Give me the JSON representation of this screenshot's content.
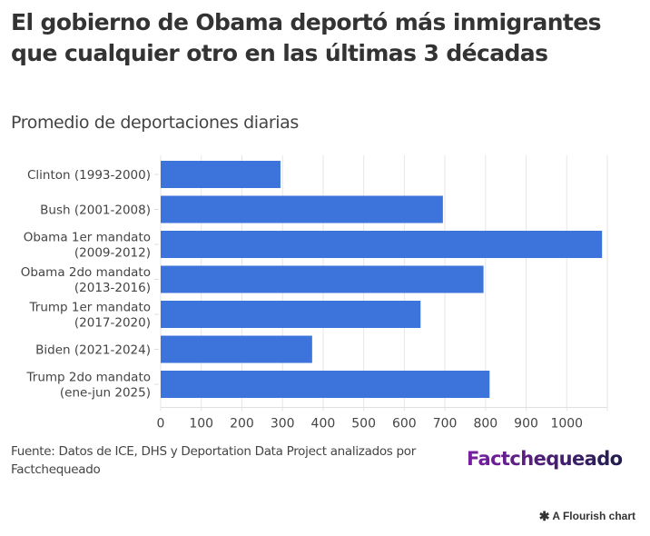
{
  "header": {
    "title": "El gobierno de Obama deportó más inmigrantes que cualquier otro en las últimas 3 décadas",
    "subtitle": "Promedio de deportaciones diarias"
  },
  "footer": {
    "source": "Fuente: Datos de ICE, DHS y Deportation Data Project analizados por Factchequeado",
    "logo_text": "Factchequeado",
    "flourish_icon": "flourish-star-icon",
    "flourish_label": "A Flourish chart"
  },
  "colors": {
    "bar": "#3d74db",
    "grid": "#e6e6e6",
    "logo_start": "#7b1fa2",
    "logo_end": "#1f1d4d"
  },
  "chart_data": {
    "type": "bar",
    "orientation": "horizontal",
    "title": "El gobierno de Obama deportó más inmigrantes que cualquier otro en las últimas 3 décadas",
    "subtitle": "Promedio de deportaciones diarias",
    "xlabel": "",
    "ylabel": "",
    "categories": [
      [
        "Clinton (1993-2000)"
      ],
      [
        "Bush (2001-2008)"
      ],
      [
        "Obama 1er mandato",
        "(2009-2012)"
      ],
      [
        "Obama 2do mandato",
        "(2013-2016)"
      ],
      [
        "Trump 1er mandato",
        "(2017-2020)"
      ],
      [
        "Biden (2021-2024)"
      ],
      [
        "Trump 2do mandato",
        "(ene-jun 2025)"
      ]
    ],
    "values": [
      295,
      695,
      1087,
      795,
      640,
      373,
      810
    ],
    "xlim": [
      0,
      1100
    ],
    "ticks": [
      0,
      100,
      200,
      300,
      400,
      500,
      600,
      700,
      800,
      900,
      1000
    ],
    "tick_labels": [
      "0",
      "100",
      "200",
      "300",
      "400",
      "500",
      "600",
      "700",
      "800",
      "900",
      "1000"
    ],
    "grid": true,
    "legend": "none"
  }
}
